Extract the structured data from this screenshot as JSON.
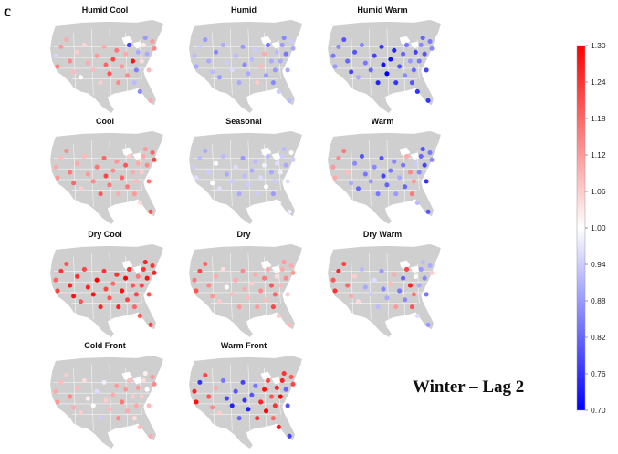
{
  "figure": {
    "panel_letter": "c",
    "caption": "Winter – Lag 2"
  },
  "colorbar": {
    "min": 0.7,
    "max": 1.3,
    "ticks": [
      "1.30",
      "1.24",
      "1.18",
      "1.12",
      "1.06",
      "1.00",
      "0.94",
      "0.88",
      "0.82",
      "0.76",
      "0.70"
    ],
    "colors": {
      "low": "#0000ff",
      "mid": "#ffffff",
      "high": "#ff0000"
    }
  },
  "map_style": {
    "land": "#cfcfcf",
    "border": "#ffffff",
    "background": "#ffffff"
  },
  "panels": [
    {
      "title": "Humid Cool",
      "values": [
        0.95,
        1.15,
        1.12,
        1.1,
        1.14,
        1.08,
        1.06,
        1.0,
        1.05,
        1.1,
        1.08,
        1.12,
        1.06,
        1.1,
        1.18,
        1.2,
        1.22,
        1.16,
        1.14,
        1.12,
        1.1,
        1.14,
        0.78,
        1.28,
        0.92,
        0.85,
        0.9,
        0.86,
        1.04,
        1.02,
        0.88,
        0.9,
        1.08,
        1.1,
        1.12,
        1.14
      ]
    },
    {
      "title": "Humid",
      "values": [
        0.92,
        0.9,
        0.94,
        0.88,
        0.9,
        0.92,
        0.86,
        0.88,
        0.9,
        0.94,
        0.96,
        0.92,
        0.9,
        0.88,
        0.86,
        0.9,
        0.92,
        0.94,
        1.06,
        1.08,
        1.1,
        0.88,
        0.84,
        0.9,
        0.86,
        0.88,
        0.92,
        0.94,
        0.9,
        0.88,
        0.86,
        0.84,
        0.9,
        0.92,
        0.94,
        0.9
      ]
    },
    {
      "title": "Humid Warm",
      "values": [
        0.84,
        0.88,
        0.86,
        0.8,
        0.82,
        0.78,
        0.8,
        0.9,
        0.86,
        0.84,
        0.82,
        0.78,
        0.74,
        0.76,
        0.72,
        0.7,
        0.72,
        0.74,
        0.76,
        0.8,
        0.82,
        0.86,
        0.84,
        0.88,
        0.8,
        0.82,
        0.78,
        0.76,
        0.84,
        0.86,
        0.82,
        0.8,
        0.78,
        0.76,
        0.84,
        0.86
      ]
    },
    {
      "title": "Cool",
      "values": [
        1.1,
        1.12,
        1.08,
        1.14,
        1.16,
        1.18,
        1.1,
        1.06,
        1.08,
        1.12,
        1.14,
        1.16,
        1.2,
        1.18,
        1.22,
        1.16,
        1.14,
        1.12,
        1.1,
        1.18,
        1.2,
        1.16,
        1.06,
        1.1,
        1.12,
        1.08,
        1.1,
        1.04,
        1.06,
        1.1,
        1.12,
        1.14,
        1.16,
        1.2,
        1.18,
        1.22
      ]
    },
    {
      "title": "Seasonal",
      "values": [
        0.94,
        0.96,
        0.92,
        0.9,
        0.94,
        1.0,
        1.0,
        0.96,
        0.92,
        0.9,
        0.94,
        0.96,
        0.9,
        0.88,
        0.92,
        0.94,
        0.9,
        0.92,
        0.94,
        0.96,
        0.98,
        1.0,
        0.92,
        0.9,
        0.88,
        0.94,
        0.96,
        1.0,
        0.98,
        0.94,
        0.92,
        0.9,
        0.96,
        0.98,
        1.0,
        0.94
      ]
    },
    {
      "title": "Warm",
      "values": [
        1.12,
        1.1,
        1.14,
        1.16,
        1.08,
        0.9,
        0.86,
        0.82,
        0.8,
        0.84,
        0.88,
        0.86,
        0.84,
        0.8,
        0.78,
        0.82,
        0.84,
        0.86,
        0.88,
        0.9,
        0.84,
        0.82,
        1.1,
        1.14,
        1.16,
        1.12,
        0.94,
        0.92,
        0.86,
        0.82,
        0.8,
        0.78,
        0.76,
        0.8,
        0.84,
        0.86
      ]
    },
    {
      "title": "Dry Cool",
      "values": [
        1.18,
        1.22,
        1.24,
        1.2,
        1.26,
        1.28,
        1.24,
        1.2,
        1.22,
        1.26,
        1.28,
        1.3,
        1.26,
        1.24,
        1.22,
        1.2,
        1.18,
        1.24,
        1.26,
        1.28,
        1.3,
        1.22,
        1.24,
        1.2,
        1.18,
        1.22,
        1.16,
        1.2,
        1.22,
        1.24,
        1.26,
        1.28,
        1.2,
        1.22,
        1.24,
        1.26
      ]
    },
    {
      "title": "Dry",
      "values": [
        1.16,
        1.2,
        1.22,
        1.18,
        1.14,
        1.12,
        1.1,
        1.06,
        1.04,
        1.0,
        1.08,
        1.1,
        1.12,
        1.14,
        1.1,
        1.08,
        1.06,
        1.1,
        1.12,
        1.14,
        1.16,
        1.08,
        1.1,
        1.2,
        1.22,
        1.18,
        1.04,
        1.06,
        1.08,
        1.1,
        1.12,
        1.14,
        1.06,
        1.08,
        1.1,
        1.12
      ]
    },
    {
      "title": "Dry Warm",
      "values": [
        1.2,
        1.24,
        1.26,
        1.22,
        1.18,
        1.1,
        1.06,
        1.04,
        0.92,
        0.9,
        0.94,
        0.96,
        0.92,
        0.88,
        0.86,
        0.9,
        1.08,
        1.1,
        1.12,
        0.84,
        0.82,
        0.86,
        1.22,
        1.26,
        1.2,
        1.16,
        1.0,
        0.96,
        0.9,
        0.88,
        0.92,
        0.86,
        0.84,
        0.88,
        0.9,
        1.06
      ]
    },
    {
      "title": "Cold Front",
      "values": [
        1.1,
        1.12,
        1.08,
        1.06,
        1.14,
        1.1,
        1.08,
        1.06,
        1.04,
        1.02,
        1.0,
        0.96,
        0.94,
        0.98,
        1.06,
        1.08,
        1.1,
        1.12,
        1.14,
        1.16,
        1.12,
        1.1,
        1.08,
        1.06,
        1.04,
        1.1,
        1.12,
        1.08,
        1.06,
        1.04,
        1.02,
        1.0,
        1.08,
        1.1,
        1.12,
        1.14
      ]
    },
    {
      "title": "Warm Front",
      "values": [
        1.26,
        1.28,
        0.76,
        1.22,
        1.2,
        1.14,
        1.1,
        1.06,
        0.84,
        0.78,
        0.74,
        0.8,
        0.82,
        0.78,
        0.76,
        0.74,
        0.8,
        0.84,
        1.24,
        1.26,
        1.28,
        1.3,
        1.22,
        1.2,
        1.18,
        1.24,
        1.26,
        1.28,
        1.3,
        1.26,
        1.24,
        0.82,
        0.8,
        0.78,
        1.2,
        1.22
      ]
    }
  ]
}
